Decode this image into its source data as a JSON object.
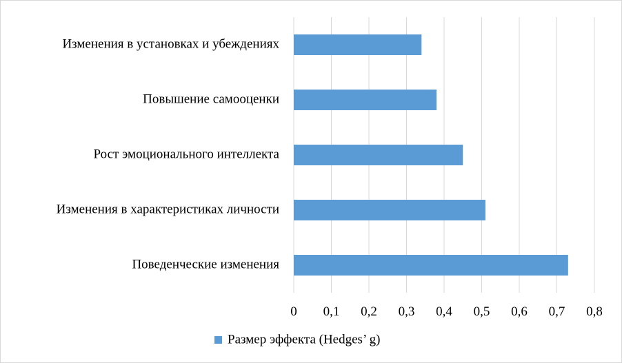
{
  "chart_data": {
    "type": "bar",
    "orientation": "horizontal",
    "categories": [
      "Изменения в установках и убеждениях",
      "Повышение самооценки",
      "Рост эмоционального интеллекта",
      "Изменения в характеристиках личности",
      "Поведенческие изменения"
    ],
    "series": [
      {
        "name": "Размер эффекта (Hedges’ g)",
        "values": [
          0.34,
          0.38,
          0.45,
          0.51,
          0.73
        ],
        "color": "#5b9bd5"
      }
    ],
    "xlim": [
      0,
      0.8
    ],
    "xticks": [
      "0",
      "0,1",
      "0,2",
      "0,3",
      "0,4",
      "0,5",
      "0,6",
      "0,7",
      "0,8"
    ],
    "grid": true,
    "legend_position": "bottom"
  }
}
